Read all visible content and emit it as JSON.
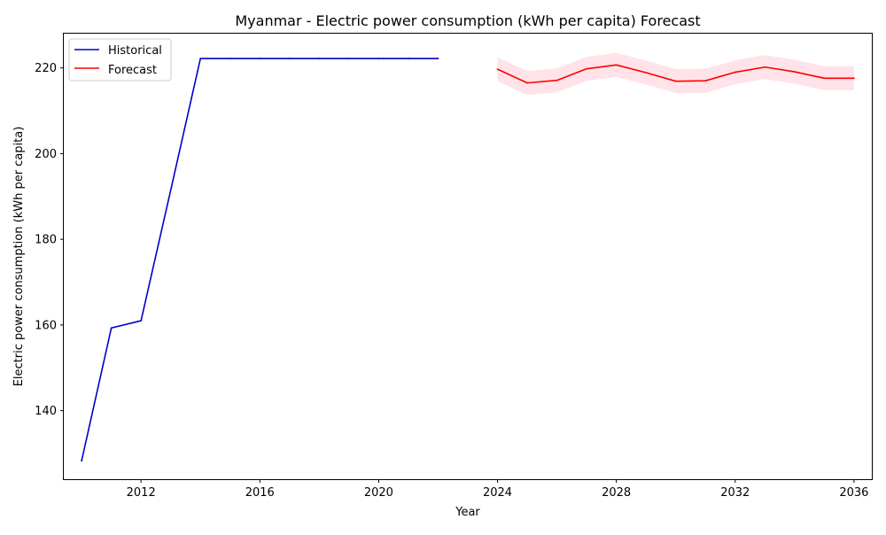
{
  "chart_data": {
    "type": "line",
    "title": "Myanmar - Electric power consumption (kWh per capita) Forecast",
    "xlabel": "Year",
    "ylabel": "Electric power consumption (kWh per capita)",
    "xlim": [
      2009.4,
      2036.6
    ],
    "ylim": [
      124,
      228
    ],
    "xticks": [
      2012,
      2016,
      2020,
      2024,
      2028,
      2032,
      2036
    ],
    "yticks": [
      140,
      160,
      180,
      200,
      220
    ],
    "grid": false,
    "legend_position": "top-left",
    "series": [
      {
        "name": "Historical",
        "color": "#0000cc",
        "x": [
          2010,
          2011,
          2012,
          2013,
          2014,
          2015,
          2016,
          2017,
          2018,
          2019,
          2020,
          2021,
          2022
        ],
        "y": [
          128.3,
          159.3,
          161.0,
          191.5,
          222.2,
          222.2,
          222.2,
          222.2,
          222.2,
          222.2,
          222.2,
          222.2,
          222.2
        ]
      },
      {
        "name": "Forecast",
        "color": "#ff0000",
        "x": [
          2024,
          2025,
          2026,
          2027,
          2028,
          2029,
          2030,
          2031,
          2032,
          2033,
          2034,
          2035,
          2036
        ],
        "y": [
          219.7,
          216.5,
          217.1,
          219.8,
          220.7,
          218.9,
          216.9,
          217.0,
          219.0,
          220.2,
          219.1,
          217.6,
          217.6
        ],
        "lower": [
          216.9,
          213.7,
          214.3,
          217.0,
          217.9,
          216.1,
          214.1,
          214.2,
          216.2,
          217.4,
          216.3,
          214.8,
          214.8
        ],
        "upper": [
          222.5,
          219.3,
          219.9,
          222.6,
          223.5,
          221.7,
          219.7,
          219.8,
          221.8,
          223.0,
          221.9,
          220.4,
          220.4
        ],
        "band_color": "#ffc0cb"
      }
    ]
  }
}
